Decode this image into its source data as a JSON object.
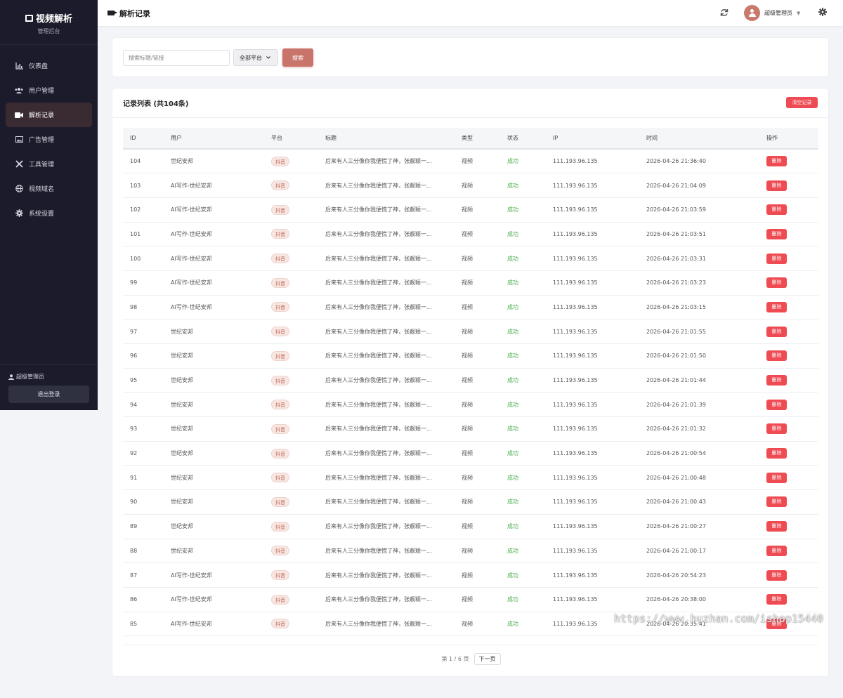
{
  "sidebar": {
    "brand_title": "视频解析",
    "brand_subtitle": "管理后台",
    "items": [
      {
        "label": "仪表盘",
        "icon": "chart-icon"
      },
      {
        "label": "用户管理",
        "icon": "users-icon"
      },
      {
        "label": "解析记录",
        "icon": "video-icon",
        "active": true
      },
      {
        "label": "广告管理",
        "icon": "image-icon"
      },
      {
        "label": "工具管理",
        "icon": "tools-icon"
      },
      {
        "label": "视频域名",
        "icon": "globe-icon"
      },
      {
        "label": "系统设置",
        "icon": "gear-icon"
      }
    ],
    "user": "超级管理员",
    "logout": "退出登录"
  },
  "topbar": {
    "title": "解析记录",
    "user_name": "超级管理员"
  },
  "search": {
    "placeholder": "搜索标题/链接",
    "platform_selected": "全部平台",
    "button": "搜索"
  },
  "records": {
    "title": "记录列表 (共104条)",
    "clear_button": "清空记录",
    "columns": [
      "ID",
      "用户",
      "平台",
      "标题",
      "类型",
      "状态",
      "IP",
      "时间",
      "操作"
    ],
    "rows": [
      {
        "id": "104",
        "user": "世纪安邦",
        "platform": "抖音",
        "title": "后来有人三分像你我便慌了神，张靓颖一...",
        "type": "视频",
        "status": "成功",
        "ip": "111.193.96.135",
        "time": "2026-04-26 21:36:40",
        "action": "删除"
      },
      {
        "id": "103",
        "user": "AI写作-世纪安邦",
        "platform": "抖音",
        "title": "后来有人三分像你我便慌了神，张靓颖一...",
        "type": "视频",
        "status": "成功",
        "ip": "111.193.96.135",
        "time": "2026-04-26 21:04:09",
        "action": "删除"
      },
      {
        "id": "102",
        "user": "AI写作-世纪安邦",
        "platform": "抖音",
        "title": "后来有人三分像你我便慌了神，张靓颖一...",
        "type": "视频",
        "status": "成功",
        "ip": "111.193.96.135",
        "time": "2026-04-26 21:03:59",
        "action": "删除"
      },
      {
        "id": "101",
        "user": "AI写作-世纪安邦",
        "platform": "抖音",
        "title": "后来有人三分像你我便慌了神，张靓颖一...",
        "type": "视频",
        "status": "成功",
        "ip": "111.193.96.135",
        "time": "2026-04-26 21:03:51",
        "action": "删除"
      },
      {
        "id": "100",
        "user": "AI写作-世纪安邦",
        "platform": "抖音",
        "title": "后来有人三分像你我便慌了神，张靓颖一...",
        "type": "视频",
        "status": "成功",
        "ip": "111.193.96.135",
        "time": "2026-04-26 21:03:31",
        "action": "删除"
      },
      {
        "id": "99",
        "user": "AI写作-世纪安邦",
        "platform": "抖音",
        "title": "后来有人三分像你我便慌了神，张靓颖一...",
        "type": "视频",
        "status": "成功",
        "ip": "111.193.96.135",
        "time": "2026-04-26 21:03:23",
        "action": "删除"
      },
      {
        "id": "98",
        "user": "AI写作-世纪安邦",
        "platform": "抖音",
        "title": "后来有人三分像你我便慌了神，张靓颖一...",
        "type": "视频",
        "status": "成功",
        "ip": "111.193.96.135",
        "time": "2026-04-26 21:03:15",
        "action": "删除"
      },
      {
        "id": "97",
        "user": "世纪安邦",
        "platform": "抖音",
        "title": "后来有人三分像你我便慌了神，张靓颖一...",
        "type": "视频",
        "status": "成功",
        "ip": "111.193.96.135",
        "time": "2026-04-26 21:01:55",
        "action": "删除"
      },
      {
        "id": "96",
        "user": "世纪安邦",
        "platform": "抖音",
        "title": "后来有人三分像你我便慌了神，张靓颖一...",
        "type": "视频",
        "status": "成功",
        "ip": "111.193.96.135",
        "time": "2026-04-26 21:01:50",
        "action": "删除"
      },
      {
        "id": "95",
        "user": "世纪安邦",
        "platform": "抖音",
        "title": "后来有人三分像你我便慌了神，张靓颖一...",
        "type": "视频",
        "status": "成功",
        "ip": "111.193.96.135",
        "time": "2026-04-26 21:01:44",
        "action": "删除"
      },
      {
        "id": "94",
        "user": "世纪安邦",
        "platform": "抖音",
        "title": "后来有人三分像你我便慌了神，张靓颖一...",
        "type": "视频",
        "status": "成功",
        "ip": "111.193.96.135",
        "time": "2026-04-26 21:01:39",
        "action": "删除"
      },
      {
        "id": "93",
        "user": "世纪安邦",
        "platform": "抖音",
        "title": "后来有人三分像你我便慌了神，张靓颖一...",
        "type": "视频",
        "status": "成功",
        "ip": "111.193.96.135",
        "time": "2026-04-26 21:01:32",
        "action": "删除"
      },
      {
        "id": "92",
        "user": "世纪安邦",
        "platform": "抖音",
        "title": "后来有人三分像你我便慌了神，张靓颖一...",
        "type": "视频",
        "status": "成功",
        "ip": "111.193.96.135",
        "time": "2026-04-26 21:00:54",
        "action": "删除"
      },
      {
        "id": "91",
        "user": "世纪安邦",
        "platform": "抖音",
        "title": "后来有人三分像你我便慌了神，张靓颖一...",
        "type": "视频",
        "status": "成功",
        "ip": "111.193.96.135",
        "time": "2026-04-26 21:00:48",
        "action": "删除"
      },
      {
        "id": "90",
        "user": "世纪安邦",
        "platform": "抖音",
        "title": "后来有人三分像你我便慌了神，张靓颖一...",
        "type": "视频",
        "status": "成功",
        "ip": "111.193.96.135",
        "time": "2026-04-26 21:00:43",
        "action": "删除"
      },
      {
        "id": "89",
        "user": "世纪安邦",
        "platform": "抖音",
        "title": "后来有人三分像你我便慌了神，张靓颖一...",
        "type": "视频",
        "status": "成功",
        "ip": "111.193.96.135",
        "time": "2026-04-26 21:00:27",
        "action": "删除"
      },
      {
        "id": "88",
        "user": "世纪安邦",
        "platform": "抖音",
        "title": "后来有人三分像你我便慌了神，张靓颖一...",
        "type": "视频",
        "status": "成功",
        "ip": "111.193.96.135",
        "time": "2026-04-26 21:00:17",
        "action": "删除"
      },
      {
        "id": "87",
        "user": "AI写作-世纪安邦",
        "platform": "抖音",
        "title": "后来有人三分像你我便慌了神，张靓颖一...",
        "type": "视频",
        "status": "成功",
        "ip": "111.193.96.135",
        "time": "2026-04-26 20:54:23",
        "action": "删除"
      },
      {
        "id": "86",
        "user": "AI写作-世纪安邦",
        "platform": "抖音",
        "title": "后来有人三分像你我便慌了神，张靓颖一...",
        "type": "视频",
        "status": "成功",
        "ip": "111.193.96.135",
        "time": "2026-04-26 20:38:00",
        "action": "删除"
      },
      {
        "id": "85",
        "user": "AI写作-世纪安邦",
        "platform": "抖音",
        "title": "后来有人三分像你我便慌了神，张靓颖一...",
        "type": "视频",
        "status": "成功",
        "ip": "111.193.96.135",
        "time": "2026-04-26 20:35:41",
        "action": "删除"
      }
    ]
  },
  "pagination": {
    "info": "第 1 / 6 页",
    "next": "下一页"
  },
  "watermark": "https://www.huzhan.com/ishop15440",
  "colors": {
    "sidebar_bg": "#1b1b2b",
    "accent": "#c9746a",
    "danger": "#ef4b52",
    "success": "#4cae4c"
  }
}
